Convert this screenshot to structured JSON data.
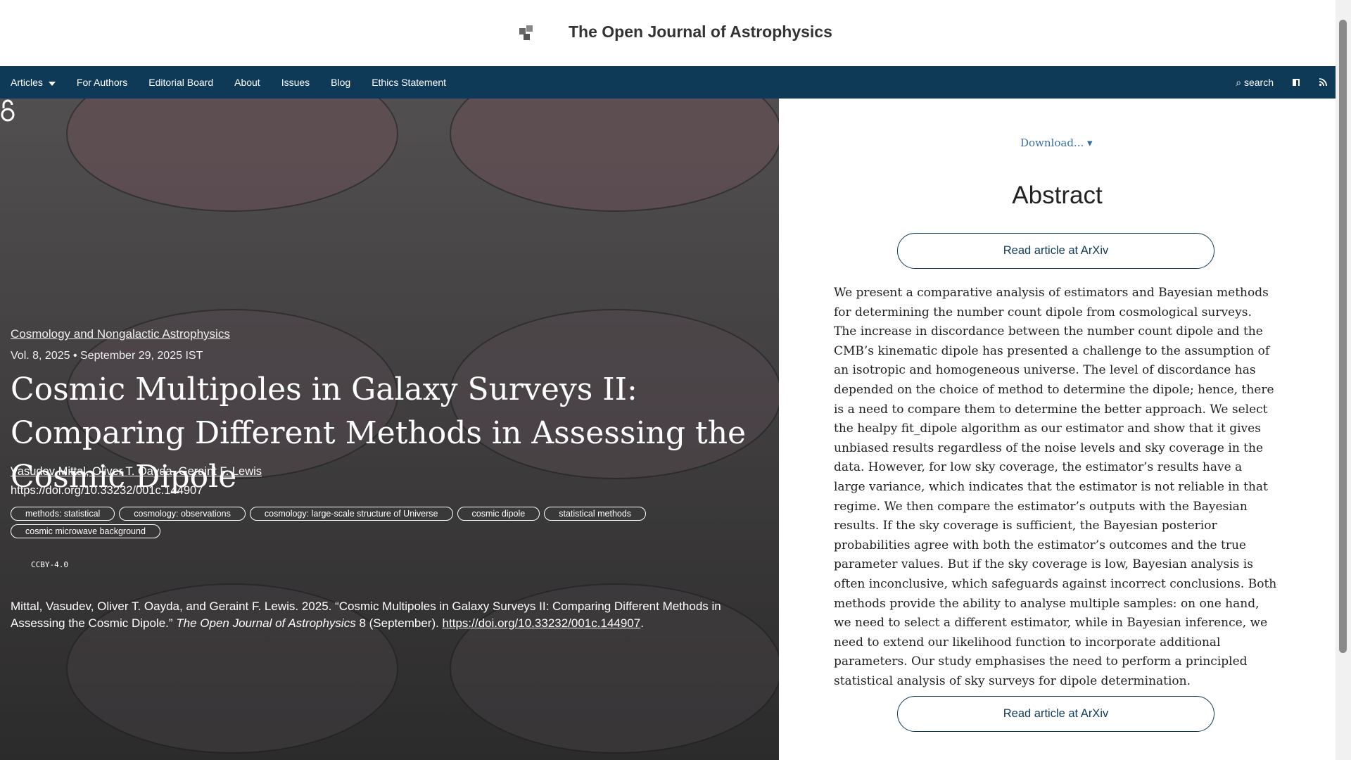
{
  "header": {
    "title": "The Open Journal of Astrophysics"
  },
  "nav": {
    "items": [
      "Articles",
      "For Authors",
      "Editorial Board",
      "About",
      "Issues",
      "Blog",
      "Ethics Statement"
    ],
    "search": "search"
  },
  "article": {
    "section": "Cosmology and Nongalactic Astrophysics",
    "volume_date": "Vol. 8, 2025 • September 29, 2025 IST",
    "title": "Cosmic Multipoles in Galaxy Surveys II: Comparing Different Methods in Assessing the Cosmic Dipole",
    "authors": [
      "Vasudev Mittal",
      "Oliver T. Oayda",
      "Geraint F. Lewis"
    ],
    "doi": "https://doi.org/10.33232/001c.144907",
    "keywords": [
      "methods: statistical",
      "cosmology: observations",
      "cosmology: large-scale structure of Universe",
      "cosmic dipole",
      "statistical methods",
      "cosmic microwave background"
    ],
    "license": "CCBY-4.0",
    "citation": {
      "text_before": "Mittal, Vasudev, Oliver T. Oayda, and Geraint F. Lewis. 2025. “Cosmic Multipoles in Galaxy Surveys II: Comparing Different Methods in Assessing the Cosmic Dipole.” ",
      "journal": "The Open Journal of Astrophysics",
      "text_after": " 8 (September). ",
      "link": "https://doi.org/10.33232/001c.144907",
      "end": "."
    }
  },
  "sidebar": {
    "download": "Download... ▾",
    "abstract_heading": "Abstract",
    "read_button": "Read article at ArXiv",
    "abstract": "We present a comparative analysis of estimators and Bayesian methods for determining the number count dipole from cosmological surveys. The increase in discordance between the number count dipole and the CMB’s kinematic dipole has presented a challenge to the assumption of an isotropic and homogeneous universe. The level of discordance has depended on the choice of method to determine the dipole; hence, there is a need to compare them to determine the better approach. We select the healpy fit_dipole algorithm as our estimator and show that it gives unbiased results regardless of the noise levels and sky coverage in the data. However, for low sky coverage, the estimator’s results have a large variance, which indicates that the estimator is not reliable in that regime. We then compare the estimator’s outputs with the Bayesian results. If the sky coverage is sufficient, the Bayesian posterior probabilities agree with both the estimator’s outcomes and the true parameter values. But if the sky coverage is low, Bayesian analysis is often inconclusive, which safeguards against incorrect conclusions. Both methods provide the ability to analyse multiple samples: on one hand, we need to select a different estimator, while in Bayesian inference, we need to extend our likelihood function to incorporate additional parameters. Our study emphasises the need to perform a principled statistical analysis of sky surveys for dipole determination."
  }
}
